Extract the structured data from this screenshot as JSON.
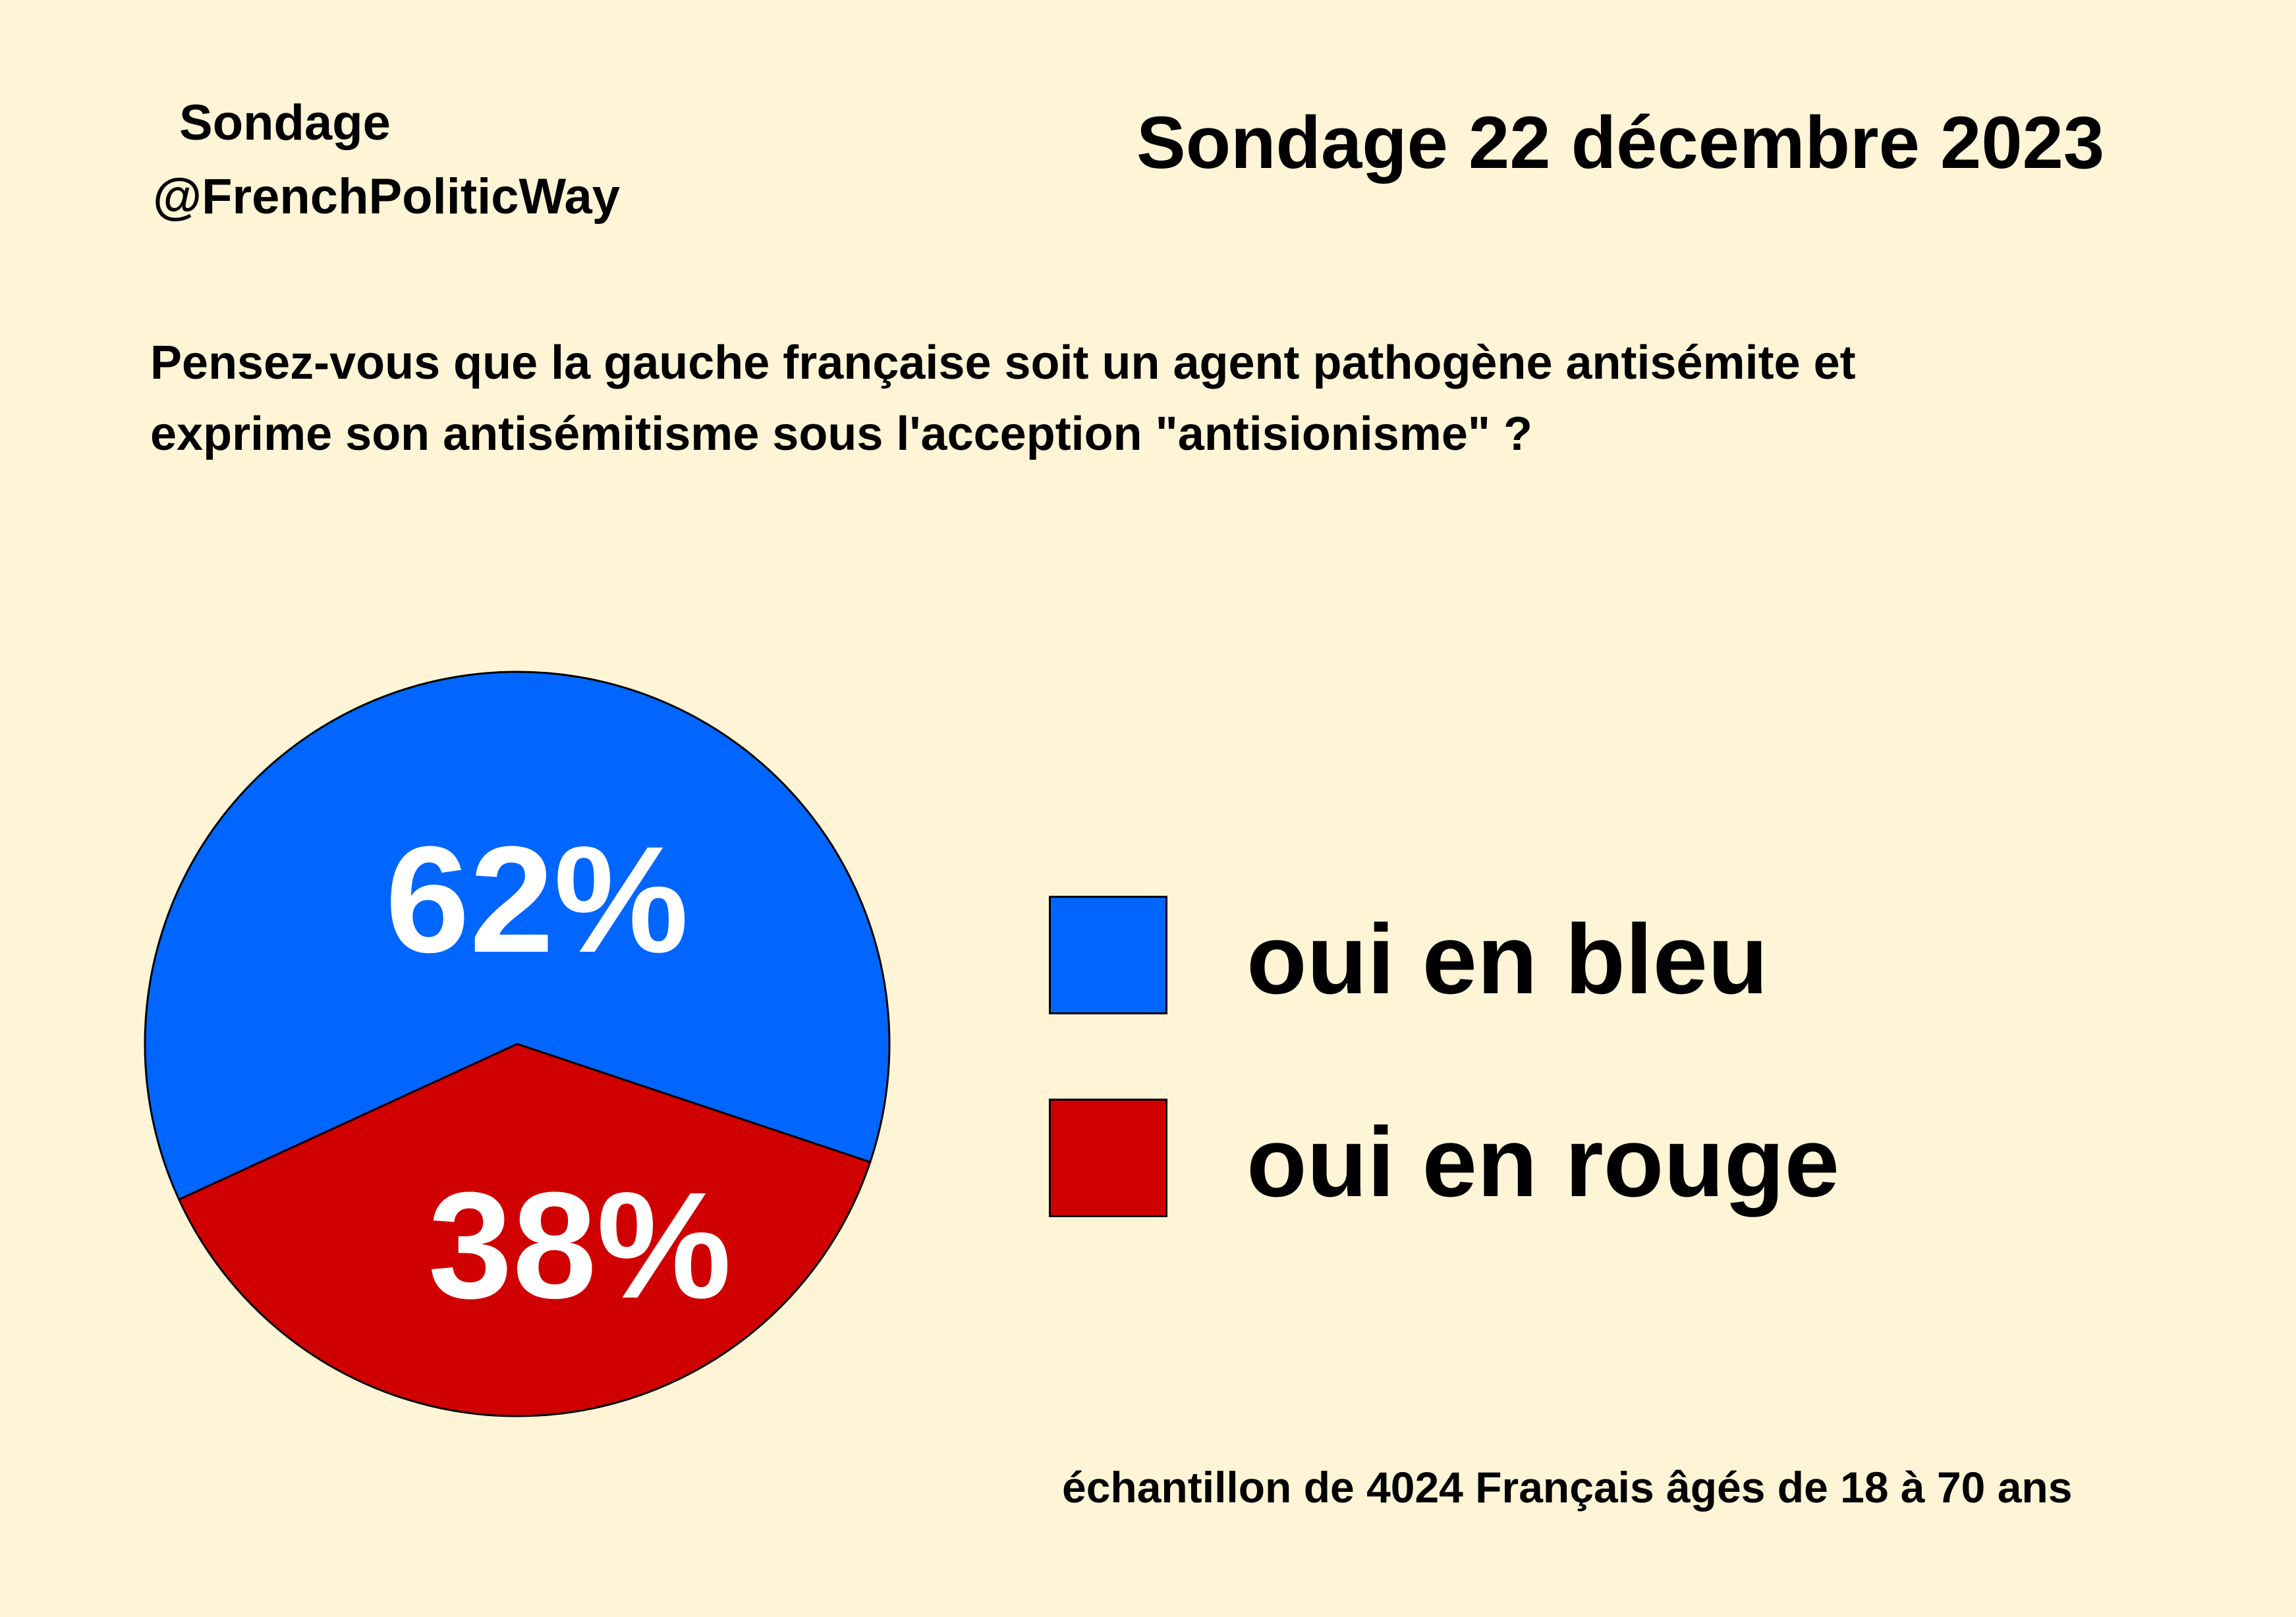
{
  "header": {
    "brand_line1": "Sondage",
    "brand_line2": "@FrenchPoliticWay",
    "title": "Sondage 22 décembre 2023"
  },
  "question": {
    "line1": "Pensez-vous que la gauche française soit un agent pathogène antisémite et",
    "line2": "exprime son antisémitisme sous l'acception \"antisionisme\" ?"
  },
  "footnote": "échantillon de 4024 Français âgés de 18 à 70 ans",
  "colors": {
    "background": "#fff5d6",
    "blue": "#0066ff",
    "red": "#d10000"
  },
  "chart_data": {
    "type": "pie",
    "title": "Sondage 22 décembre 2023",
    "legend_position": "right",
    "slices": [
      {
        "label": "oui en bleu",
        "value": 62,
        "display": "62%",
        "color": "#0066ff"
      },
      {
        "label": "oui en rouge",
        "value": 38,
        "display": "38%",
        "color": "#d10000"
      }
    ]
  }
}
